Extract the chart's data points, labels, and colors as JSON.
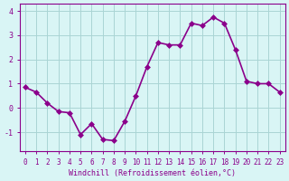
{
  "x": [
    0,
    1,
    2,
    3,
    4,
    5,
    6,
    7,
    8,
    9,
    10,
    11,
    12,
    13,
    14,
    15,
    16,
    17,
    18,
    19,
    20,
    21,
    22,
    23
  ],
  "y": [
    0.85,
    0.65,
    0.2,
    -0.15,
    -0.2,
    -1.1,
    -0.65,
    -1.3,
    -1.35,
    -0.55,
    0.5,
    1.7,
    2.7,
    2.6,
    2.6,
    3.5,
    3.4,
    3.75,
    3.5,
    2.4,
    1.1,
    1.0,
    1.0,
    0.65
  ],
  "line_color": "#8B008B",
  "marker_color": "#8B008B",
  "bg_color": "#d9f5f5",
  "grid_color": "#aad4d4",
  "xlabel": "Windchill (Refroidissement éolien,°C)",
  "ylabel": "",
  "xlim": [
    -0.5,
    23.5
  ],
  "ylim": [
    -1.8,
    4.3
  ],
  "yticks": [
    -1,
    0,
    1,
    2,
    3,
    4
  ],
  "xticks": [
    0,
    1,
    2,
    3,
    4,
    5,
    6,
    7,
    8,
    9,
    10,
    11,
    12,
    13,
    14,
    15,
    16,
    17,
    18,
    19,
    20,
    21,
    22,
    23
  ],
  "title_color": "#8B008B",
  "axis_label_color": "#8B008B",
  "tick_label_color": "#8B008B",
  "spine_color": "#8B008B",
  "marker_size": 3,
  "line_width": 1.2
}
